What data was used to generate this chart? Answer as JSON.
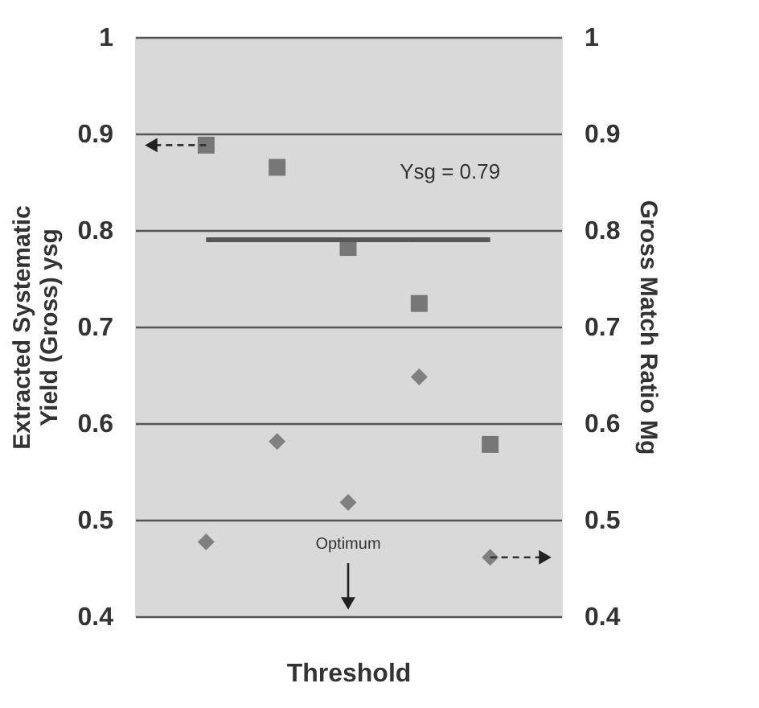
{
  "chart_data": {
    "type": "scatter",
    "xlabel": "Threshold",
    "ylabel": "Extracted Systematic\nYield (Gross) ysg",
    "y2label": "Gross Match Ratio Mg",
    "categories": [
      null,
      null,
      null,
      null,
      null
    ],
    "series": [
      {
        "marker": "square",
        "color": "#777777",
        "values": [
          0.888,
          0.865,
          0.782,
          0.724,
          0.578
        ]
      },
      {
        "marker": "diamond",
        "color": "#808080",
        "axis": "y2",
        "values": [
          0.477,
          0.581,
          0.518,
          0.648,
          0.461
        ]
      }
    ],
    "ylim": [
      0.4,
      1
    ],
    "yticks": [
      0.4,
      0.5,
      0.6,
      0.7,
      0.8,
      0.9,
      1
    ],
    "y2lim": [
      0.4,
      1
    ],
    "y2ticks": [
      0.4,
      0.5,
      0.6,
      0.7,
      0.8,
      0.9,
      1
    ],
    "ref_lines": [
      {
        "axis": "y",
        "value": 0.79,
        "label": "Ysg = 0.79",
        "color": "#555555"
      }
    ],
    "annotations": [
      "Optimum"
    ],
    "grid": "y"
  }
}
